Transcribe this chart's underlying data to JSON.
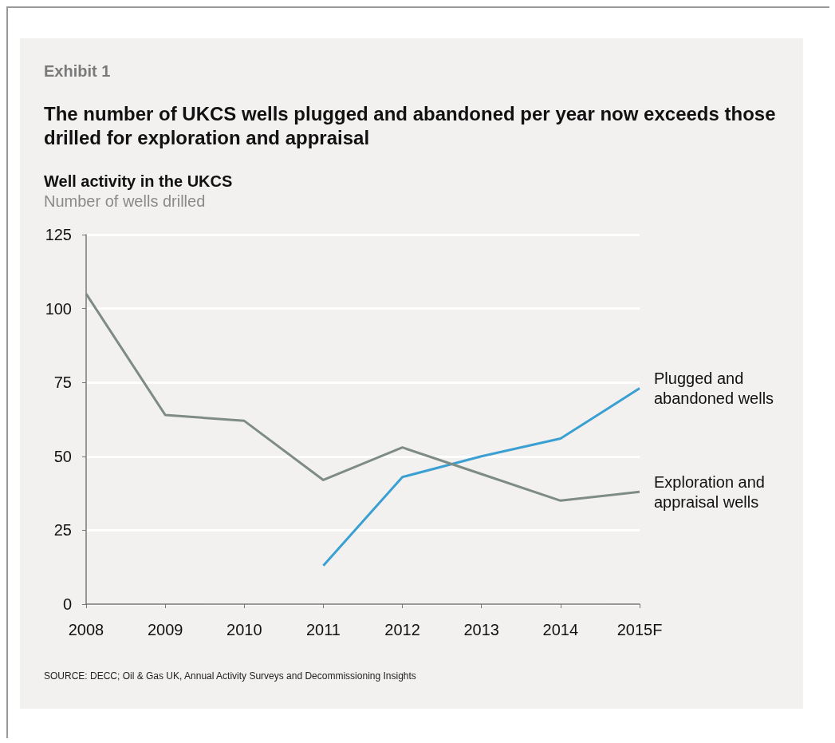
{
  "chart_data": {
    "type": "line",
    "title": "The number of UKCS wells plugged and abandoned per year now exceeds those drilled for exploration and appraisal",
    "subtitle": "Well activity in the UKCS",
    "ylabel": "Number of wells drilled",
    "annotations": [
      "Exhibit 1",
      "SOURCE: DECC; Oil & Gas UK, Annual Activity Surveys and Decommissioning Insights"
    ],
    "categories": [
      "2008",
      "2009",
      "2010",
      "2011",
      "2012",
      "2013",
      "2014",
      "2015F"
    ],
    "series": [
      {
        "name": "Plugged and abandoned wells",
        "color": "#3aa0d2",
        "values": [
          null,
          null,
          null,
          13,
          43,
          50,
          56,
          73
        ]
      },
      {
        "name": "Exploration and appraisal wells",
        "color": "#7f8c86",
        "values": [
          105,
          64,
          62,
          42,
          53,
          44,
          35,
          38
        ]
      }
    ],
    "ylim": [
      0,
      125
    ],
    "yticks": [
      0,
      25,
      50,
      75,
      100,
      125
    ],
    "grid": "y",
    "marker": "none",
    "line_style": "solid"
  }
}
